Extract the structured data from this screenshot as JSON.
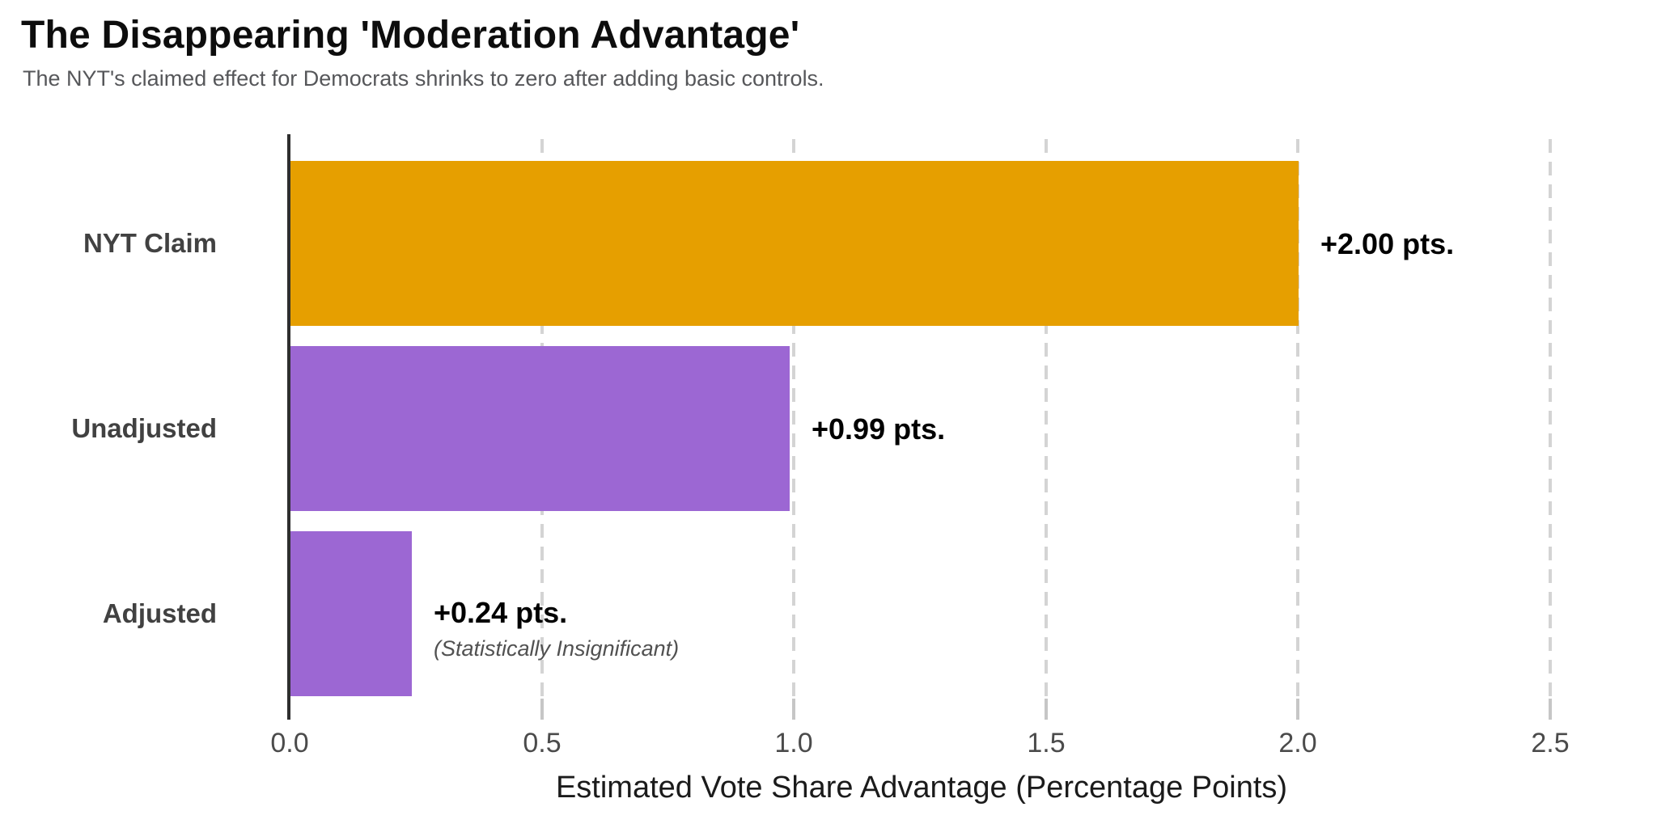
{
  "chart_data": {
    "type": "bar",
    "orientation": "horizontal",
    "title": "The Disappearing 'Moderation Advantage'",
    "subtitle": "The NYT's claimed effect for Democrats shrinks to zero after adding basic controls.",
    "xlabel": "Estimated Vote Share Advantage (Percentage Points)",
    "categories": [
      "NYT Claim",
      "Unadjusted",
      "Adjusted"
    ],
    "values": [
      2.0,
      0.99,
      0.24
    ],
    "data_labels": [
      "+2.00 pts.",
      "+0.99 pts.",
      "+0.24 pts."
    ],
    "annotations": [
      {
        "bar": "Adjusted",
        "text": "(Statistically Insignificant)"
      }
    ],
    "xticks": [
      0.0,
      0.5,
      1.0,
      1.5,
      2.0,
      2.5
    ],
    "xtick_labels": [
      "0.0",
      "0.5",
      "1.0",
      "1.5",
      "2.0",
      "2.5"
    ],
    "xlim": [
      0,
      2.7
    ],
    "legend": "none",
    "grid": {
      "axis": "x",
      "style": "dashed"
    },
    "bar_colors": [
      "#E69F00",
      "#9C67D3",
      "#9C67D3"
    ],
    "palette": {
      "orange": "#E69F00",
      "purple": "#9C67D3",
      "gridline": "#D4D4D4",
      "axis_line": "#2E2E2E",
      "title_text": "#0D0D0D",
      "subtitle_text": "#56575A",
      "category_text": "#414141",
      "tick_text": "#4B4B4B",
      "note_text": "#515151"
    }
  }
}
